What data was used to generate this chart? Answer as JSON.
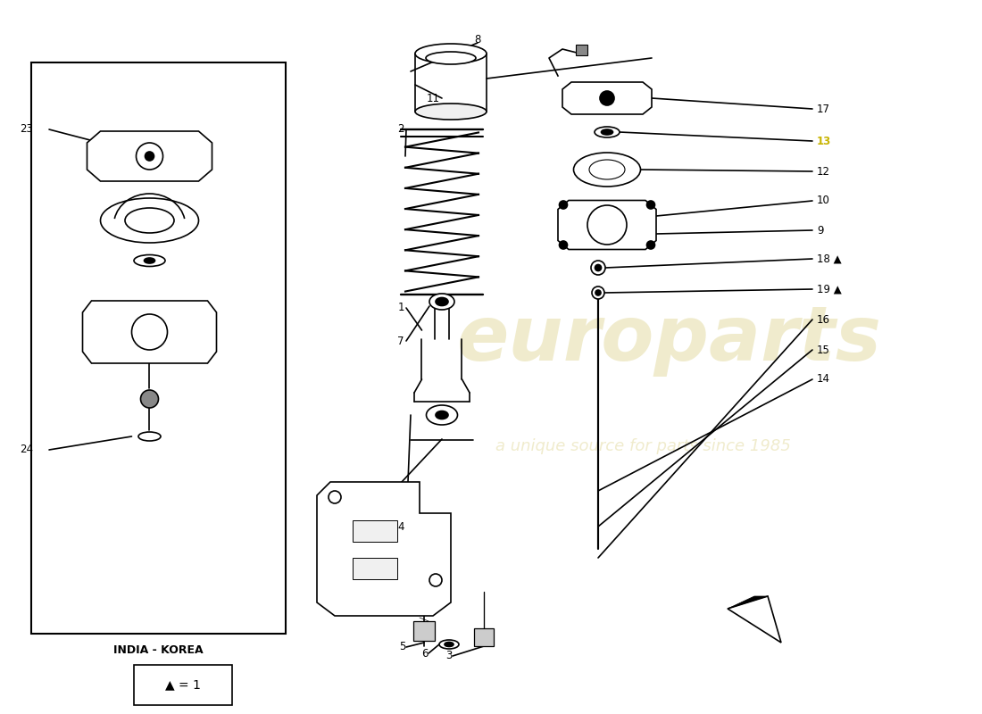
{
  "bg_color": "#ffffff",
  "line_color": "#000000",
  "watermark_color": "#d4c870",
  "india_korea_label": "INDIA - KOREA",
  "legend_text": "▲ = 1"
}
